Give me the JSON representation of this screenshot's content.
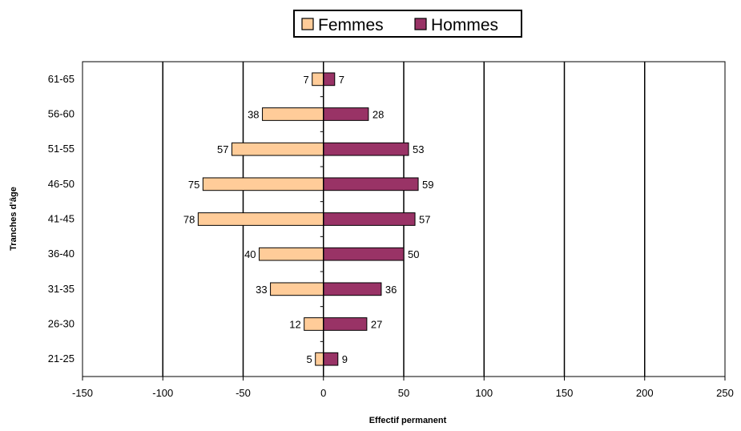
{
  "chart_data": {
    "type": "bar",
    "orientation": "horizontal",
    "layout": "population-pyramid",
    "categories": [
      "21-25",
      "26-30",
      "31-35",
      "36-40",
      "41-45",
      "46-50",
      "51-55",
      "56-60",
      "61-65"
    ],
    "series": [
      {
        "name": "Femmes",
        "values": [
          5,
          12,
          33,
          40,
          78,
          75,
          57,
          38,
          7
        ],
        "plotted_as": "negative",
        "color": "#FFCC99"
      },
      {
        "name": "Hommes",
        "values": [
          9,
          27,
          36,
          50,
          57,
          59,
          53,
          28,
          7
        ],
        "plotted_as": "positive",
        "color": "#993366"
      }
    ],
    "xlabel": "Effectif permanent",
    "ylabel": "Tranches d'âge",
    "xlim": [
      -150,
      250
    ],
    "xticks": [
      "-150",
      "-100",
      "-50",
      "0",
      "50",
      "100",
      "150",
      "200",
      "250"
    ],
    "grid": "vertical",
    "legend_position": "top-center"
  }
}
